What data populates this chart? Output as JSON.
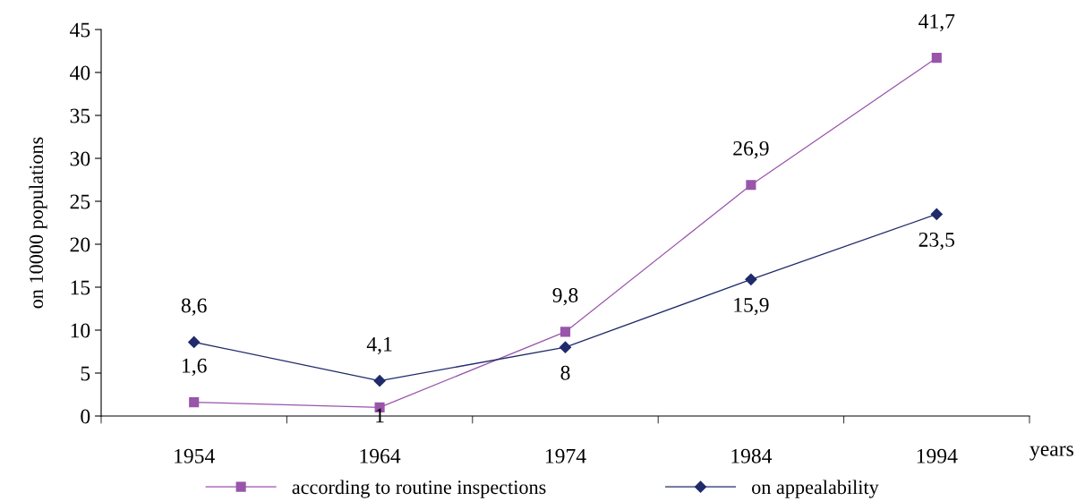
{
  "chart_data": {
    "type": "line",
    "ylabel": "on 10000 populations",
    "xlabel": "years",
    "categories": [
      "1954",
      "1964",
      "1974",
      "1984",
      "1994"
    ],
    "ylim": [
      0,
      45
    ],
    "yticks": [
      0,
      5,
      10,
      15,
      20,
      25,
      30,
      35,
      40,
      45
    ],
    "grid": false,
    "legend": "bottom",
    "series": [
      {
        "name": "according to routine inspections",
        "color": "#9955aa",
        "marker": "square",
        "values": [
          1.6,
          1,
          9.8,
          26.9,
          41.7
        ],
        "value_labels": [
          "1,6",
          "1",
          "9,8",
          "26,9",
          "41,7"
        ]
      },
      {
        "name": "on appealability",
        "color": "#1f2b6b",
        "marker": "diamond",
        "values": [
          8.6,
          4.1,
          8,
          15.9,
          23.5
        ],
        "value_labels": [
          "8,6",
          "4,1",
          "8",
          "15,9",
          "23,5"
        ]
      }
    ]
  }
}
